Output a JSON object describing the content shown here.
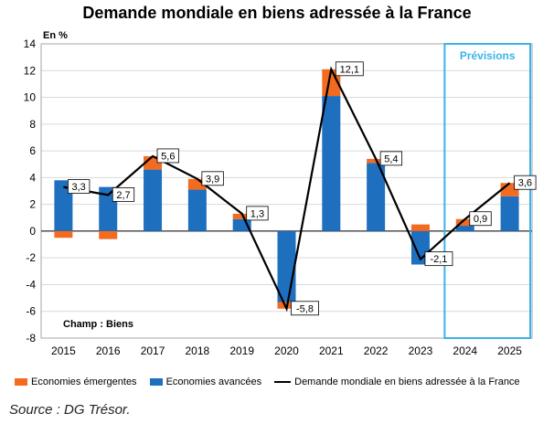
{
  "title": "Demande mondiale en biens adressée à la France",
  "unit_label": "En %",
  "champ_label": "Champ : Biens",
  "forecast_label": "Prévisions",
  "source": "Source : DG Trésor.",
  "colors": {
    "emergentes": "#f26b21",
    "avancees": "#1f6fbf",
    "line": "#000000",
    "forecast_box": "#3bb3e6",
    "grid": "#d9d9d9"
  },
  "legend": {
    "emergentes": "Economies émergentes",
    "avancees": "Economies avancées",
    "line": "Demande mondiale en biens adressée à la France"
  },
  "chart_data": {
    "type": "bar",
    "stacked": true,
    "title": "Demande mondiale en biens adressée à la France",
    "ylabel": "En %",
    "ylim": [
      -8,
      14
    ],
    "yticks": [
      -8,
      -6,
      -4,
      -2,
      0,
      2,
      4,
      6,
      8,
      10,
      12,
      14
    ],
    "grid": true,
    "categories": [
      "2015",
      "2016",
      "2017",
      "2018",
      "2019",
      "2020",
      "2021",
      "2022",
      "2023",
      "2024",
      "2025"
    ],
    "series": [
      {
        "name": "Economies avancées",
        "type": "bar",
        "values": [
          3.8,
          3.3,
          4.6,
          3.1,
          0.9,
          -5.3,
          10.1,
          5.1,
          -2.5,
          0.4,
          2.6
        ]
      },
      {
        "name": "Economies émergentes",
        "type": "bar",
        "values": [
          -0.5,
          -0.6,
          1.0,
          0.8,
          0.4,
          -0.5,
          2.0,
          0.3,
          0.5,
          0.5,
          1.0
        ]
      },
      {
        "name": "Demande mondiale en biens adressée à la France",
        "type": "line",
        "values": [
          3.3,
          2.7,
          5.6,
          3.9,
          1.3,
          -5.8,
          12.1,
          5.4,
          -2.1,
          0.9,
          3.6
        ],
        "labels": [
          "3,3",
          "2,7",
          "5,6",
          "3,9",
          "1,3",
          "-5,8",
          "12,1",
          "5,4",
          "-2,1",
          "0,9",
          "3,6"
        ]
      }
    ],
    "forecast_categories": [
      "2024",
      "2025"
    ],
    "annotations": [
      "Prévisions",
      "Champ : Biens"
    ]
  }
}
